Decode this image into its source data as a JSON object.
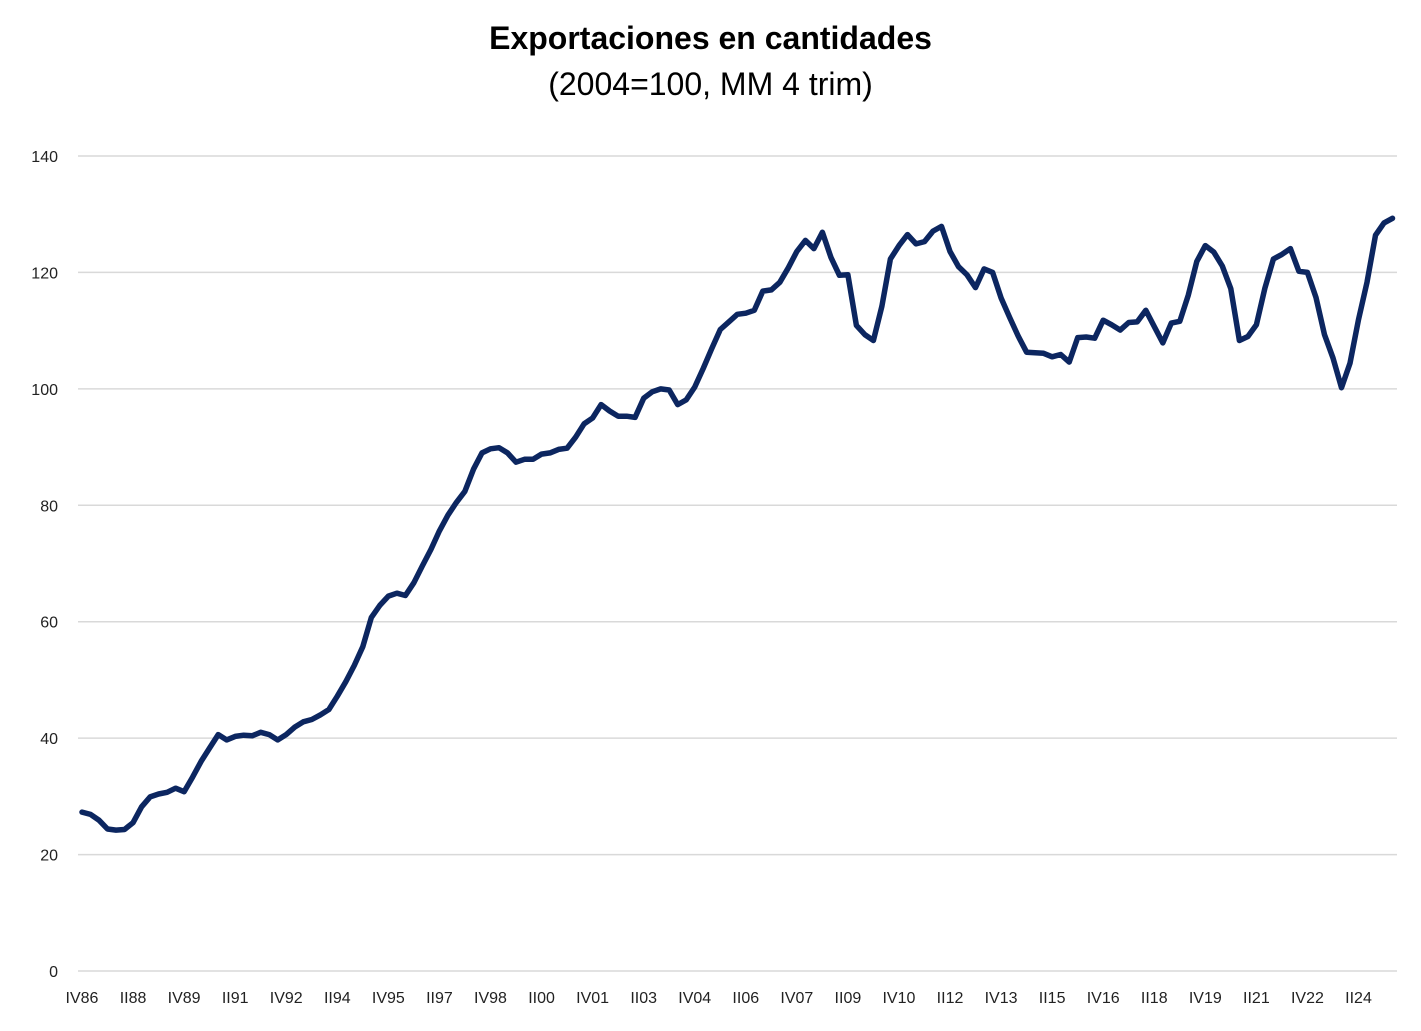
{
  "chart_data": {
    "type": "line",
    "title": "Exportaciones en cantidades",
    "subtitle": "(2004=100, MM 4 trim)",
    "xlabel": "",
    "ylabel": "",
    "ylim": [
      0,
      140
    ],
    "y_ticks": [
      0,
      20,
      40,
      60,
      80,
      100,
      120,
      140
    ],
    "grid": true,
    "legend": "none",
    "line_color": "#0c2660",
    "x_tick_every": 6,
    "x_tick_labels": [
      "IV86",
      "II88",
      "IV89",
      "II91",
      "IV92",
      "II94",
      "IV95",
      "II97",
      "IV98",
      "II00",
      "IV01",
      "II03",
      "IV04",
      "II06",
      "IV07",
      "II09",
      "IV10",
      "II12",
      "IV13",
      "II15",
      "IV16",
      "II18",
      "IV19",
      "II21",
      "IV22",
      "II24"
    ],
    "series": [
      {
        "name": "Exportaciones en cantidades",
        "values": [
          27.3,
          26.9,
          25.9,
          24.4,
          24.2,
          24.3,
          25.5,
          28.2,
          29.9,
          30.4,
          30.7,
          31.4,
          30.8,
          33.3,
          36.0,
          38.3,
          40.6,
          39.7,
          40.3,
          40.5,
          40.4,
          41.0,
          40.6,
          39.7,
          40.6,
          41.9,
          42.8,
          43.2,
          44.0,
          44.9,
          47.2,
          49.7,
          52.5,
          55.7,
          60.7,
          62.8,
          64.4,
          64.9,
          64.5,
          66.7,
          69.6,
          72.4,
          75.6,
          78.3,
          80.5,
          82.4,
          86.2,
          89.0,
          89.7,
          89.9,
          89.0,
          87.4,
          87.9,
          87.9,
          88.8,
          89.0,
          89.6,
          89.8,
          91.7,
          94.0,
          95.0,
          97.3,
          96.2,
          95.3,
          95.3,
          95.1,
          98.4,
          99.5,
          100.0,
          99.8,
          97.3,
          98.1,
          100.3,
          103.5,
          106.9,
          110.2,
          111.5,
          112.8,
          113.0,
          113.5,
          116.8,
          117.0,
          118.3,
          120.8,
          123.6,
          125.5,
          124.1,
          126.9,
          122.6,
          119.5,
          119.6,
          110.9,
          109.3,
          108.3,
          114.2,
          122.3,
          124.6,
          126.5,
          124.9,
          125.3,
          127.1,
          127.9,
          123.6,
          121.0,
          119.6,
          117.4,
          120.6,
          120.0,
          115.6,
          112.3,
          109.1,
          106.3,
          106.2,
          106.1,
          105.5,
          105.9,
          104.6,
          108.8,
          108.9,
          108.7,
          111.8,
          111.0,
          110.1,
          111.4,
          111.5,
          113.5,
          110.7,
          107.9,
          111.3,
          111.6,
          116.1,
          121.9,
          124.6,
          123.5,
          121.1,
          117.2,
          108.3,
          109.0,
          111.0,
          117.3,
          122.3,
          123.1,
          124.1,
          120.2,
          120.0,
          115.7,
          109.3,
          105.3,
          100.2,
          104.4,
          111.9,
          118.3,
          126.4,
          128.5,
          129.3
        ]
      }
    ]
  }
}
